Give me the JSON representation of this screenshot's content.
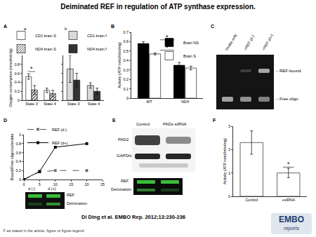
{
  "title": "Deiminated REF in regulation of ATP synthase expression.",
  "citation": "Di Ding et al. EMBO Rep. 2012;13:230-236",
  "copyright": "© as stated in the article, figure or figure legend",
  "logo": [
    "EMBO",
    "reports"
  ],
  "chart_data": [
    {
      "panel": "A",
      "subpanel": "a",
      "type": "bar",
      "y_label": "Oxygen consumption (nmol/min/g)",
      "categories": [
        "State 3",
        "State 4"
      ],
      "series": [
        {
          "name": "CD1 brain S",
          "color": "#ffffff",
          "values": [
            0.53,
            0.22
          ],
          "errors": [
            0.06,
            0.05
          ]
        },
        {
          "name": "ND4 brain S",
          "color": "#ffffff",
          "marker": "hatch",
          "values": [
            0.23,
            0.15
          ],
          "errors": [
            0.1,
            0.07
          ]
        }
      ],
      "ylim": [
        0,
        1
      ],
      "yticks": [
        0,
        0.2,
        0.4,
        0.6,
        0.8
      ],
      "grid": false,
      "legend": "top",
      "annotations": [
        {
          "text": "*",
          "x": 0,
          "y": 0.64
        }
      ]
    },
    {
      "subpanel": "b",
      "type": "bar",
      "categories": [
        "State 3",
        "State 4"
      ],
      "series": [
        {
          "name": "CD1 brain NS",
          "color": "#d9d9d9",
          "values": [
            0.7,
            0.33
          ],
          "errors": [
            0.3,
            0.06
          ]
        },
        {
          "name": "ND4 brain NS",
          "color": "#333333",
          "values": [
            0.45,
            0.2
          ],
          "errors": [
            0.15,
            0.07
          ]
        }
      ],
      "ylim": [
        0,
        1
      ],
      "yticks": [
        0,
        0.2,
        0.4,
        0.6,
        0.8
      ],
      "grid": false,
      "legend": "top",
      "tick_labels": "x"
    },
    {
      "panel": "B",
      "type": "bar",
      "y_label": "Activity (ATP nmol/min/mg)",
      "categories": [
        "WT",
        "ND4"
      ],
      "series": [
        {
          "name": "Brain NS",
          "color": "#000000",
          "values": [
            0.58,
            0.35
          ],
          "errors": [
            0.02,
            0.03
          ]
        },
        {
          "name": "Brain S",
          "color": "#ffffff",
          "values": [
            0.47,
            0.32
          ],
          "errors": [
            0.01,
            0.02
          ]
        }
      ],
      "ylim": [
        0,
        0.7
      ],
      "yticks": [
        0,
        0.1,
        0.2,
        0.3,
        0.4,
        0.5,
        0.6,
        0.7
      ],
      "grid": false,
      "legend": "top-right",
      "annotations": [
        {
          "text": "*",
          "x": 0.5,
          "y": 0.62
        },
        {
          "text": "*",
          "x": 0.5,
          "y": 0.51
        }
      ]
    },
    {
      "panel": "D",
      "type": "line",
      "y_label": "Bound/Free oligonucleotide",
      "x": [
        0,
        5,
        10,
        20
      ],
      "series": [
        {
          "name": "REF (d-)",
          "color": "#555555",
          "line_style": "dashed",
          "marker": "x",
          "values": [
            0,
            0.17,
            0.2,
            0.2
          ]
        },
        {
          "name": "REF (d+)",
          "color": "#000000",
          "line_style": "solid",
          "marker": "square",
          "values": [
            0,
            0.18,
            0.72,
            0.8
          ]
        }
      ],
      "xlim": [
        0,
        25
      ],
      "xticks": [
        0,
        5,
        10,
        15,
        20,
        25
      ],
      "ylim": [
        0,
        1
      ],
      "yticks": [
        0,
        0.2,
        0.4,
        0.6,
        0.8,
        1
      ],
      "grid": false,
      "legend": "top"
    },
    {
      "panel": "F",
      "type": "bar",
      "y_label": "Activity (ATP nmol/min/mg)",
      "categories": [
        "Control",
        "+siRNA"
      ],
      "values": [
        2.3,
        1.0
      ],
      "errors": [
        0.5,
        0.2
      ],
      "color": "#ffffff",
      "ylim": [
        0,
        3
      ],
      "yticks": [
        0,
        1,
        2,
        3
      ],
      "grid": false,
      "annotations": [
        {
          "text": "*",
          "x": 1,
          "y": 1.25
        }
      ]
    }
  ],
  "gels": {
    "C": {
      "panel": "C",
      "lanes": [
        "Probe only",
        "+REF (d-)",
        "+REF (d+)"
      ],
      "bands": [
        "REF-bound",
        "Free oligo"
      ]
    },
    "D": {
      "rows": [
        "REF",
        "Deimination"
      ],
      "lanes": [
        "d (-)",
        "d (+)"
      ]
    },
    "E": {
      "panel": "E",
      "lanes": [
        "Control",
        "PADs siRNA"
      ],
      "rows": [
        "PAD2",
        "GAPDH"
      ],
      "strips": [
        "REF",
        "Deimination"
      ]
    }
  }
}
